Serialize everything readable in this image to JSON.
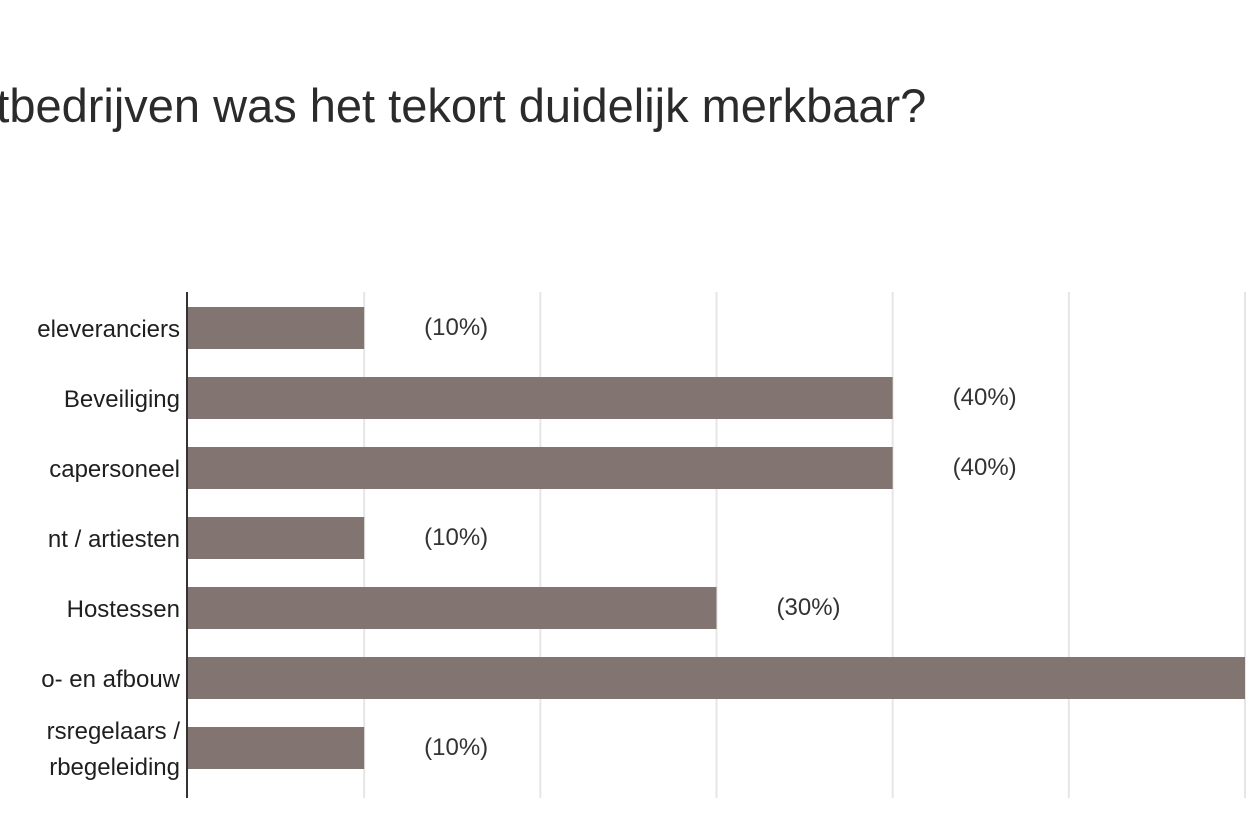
{
  "chart_data": {
    "type": "bar",
    "orientation": "horizontal",
    "title": "entbedrijven was het tekort duidelijk merkbaar?",
    "categories": [
      [
        "eleveranciers"
      ],
      [
        "Beveiliging"
      ],
      [
        "capersoneel"
      ],
      [
        "nt / artiesten"
      ],
      [
        "Hostessen"
      ],
      [
        "o- en afbouw"
      ],
      [
        "rsregelaars /",
        "rbegeleiding"
      ]
    ],
    "values": [
      10,
      40,
      40,
      10,
      30,
      60,
      10
    ],
    "value_labels": [
      "(10%)",
      "(40%)",
      "(40%)",
      "(10%)",
      "(30%)",
      "",
      "(10%)"
    ],
    "xlim": [
      0,
      60
    ],
    "grid": true,
    "bar_color": "#827471"
  }
}
